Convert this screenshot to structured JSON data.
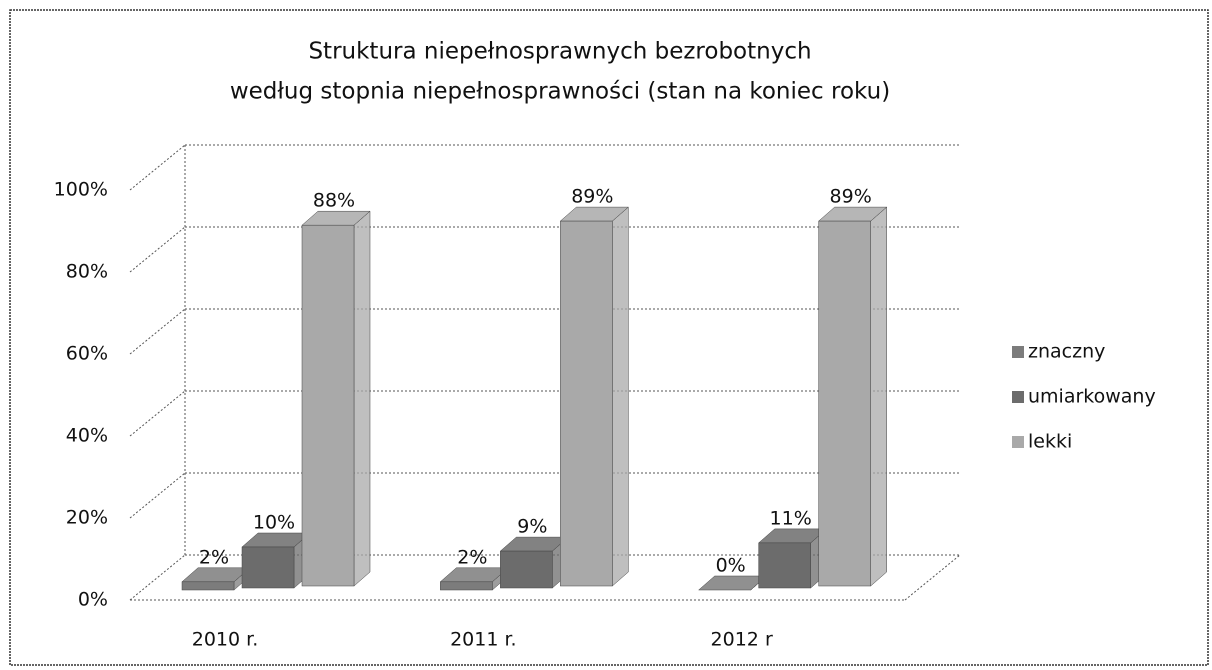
{
  "chart_data": {
    "type": "bar3d",
    "title": "Struktura niepełnosprawnych bezrobotnych",
    "subtitle": "według stopnia niepełnosprawności (stan na koniec roku)",
    "categories": [
      "2010 r.",
      "2011 r.",
      "2012 r"
    ],
    "series": [
      {
        "name": "znaczny",
        "color": "#7c7c7c",
        "values": [
          2,
          2,
          0
        ],
        "value_labels": [
          "2%",
          "2%",
          "0%"
        ]
      },
      {
        "name": "umiarkowany",
        "color": "#6c6c6c",
        "values": [
          10,
          9,
          11
        ],
        "value_labels": [
          "10%",
          "9%",
          "11%"
        ]
      },
      {
        "name": "lekki",
        "color": "#a9a9a9",
        "values": [
          88,
          89,
          89
        ],
        "value_labels": [
          "88%",
          "89%",
          "89%"
        ]
      }
    ],
    "ylim": [
      0,
      100
    ],
    "yticks": [
      {
        "value": 0,
        "label": "0%"
      },
      {
        "value": 20,
        "label": "20%"
      },
      {
        "value": 40,
        "label": "40%"
      },
      {
        "value": 60,
        "label": "60%"
      },
      {
        "value": 80,
        "label": "80%"
      },
      {
        "value": 100,
        "label": "100%"
      }
    ],
    "grid": true,
    "legend": "right"
  }
}
